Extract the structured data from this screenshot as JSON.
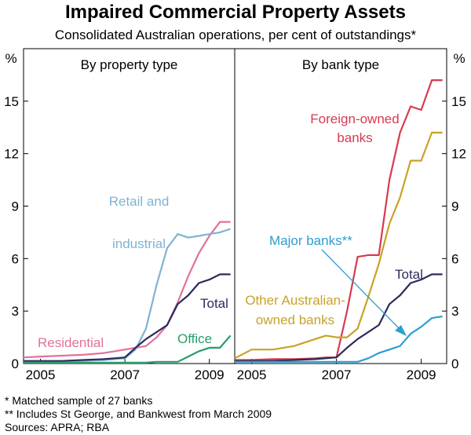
{
  "title": "Impaired Commercial Property Assets",
  "subtitle": "Consolidated Australian operations, per cent of outstandings*",
  "footnotes": [
    "*  Matched sample of 27 banks",
    "** Includes St George, and Bankwest from March 2009",
    "Sources: APRA; RBA"
  ],
  "chart_data": [
    {
      "type": "line",
      "panel_title": "By property type",
      "y_unit": "%",
      "ylim": [
        0,
        18
      ],
      "y_ticks": [
        0,
        3,
        6,
        9,
        12,
        15
      ],
      "xlim": [
        2004.6,
        2009.6
      ],
      "x_ticks": [
        2005,
        2007,
        2009
      ],
      "grid": false,
      "series": [
        {
          "name": "Residential",
          "color": "#e2719b",
          "x": [
            2004.6,
            2005.0,
            2005.5,
            2006.0,
            2006.5,
            2006.75,
            2007.0,
            2007.25,
            2007.5,
            2007.75,
            2008.0,
            2008.25,
            2008.5,
            2008.75,
            2009.0,
            2009.25,
            2009.5
          ],
          "y": [
            0.35,
            0.4,
            0.45,
            0.5,
            0.6,
            0.7,
            0.8,
            0.9,
            1.0,
            1.5,
            2.2,
            3.5,
            5.0,
            6.3,
            7.3,
            8.1,
            8.1
          ]
        },
        {
          "name": "Retail and industrial",
          "color": "#7fb2d4",
          "x": [
            2004.6,
            2005.0,
            2005.5,
            2006.0,
            2006.5,
            2006.75,
            2007.0,
            2007.25,
            2007.5,
            2007.75,
            2008.0,
            2008.25,
            2008.5,
            2008.75,
            2009.0,
            2009.25,
            2009.5
          ],
          "y": [
            0.1,
            0.1,
            0.1,
            0.15,
            0.2,
            0.25,
            0.3,
            0.8,
            2.0,
            4.5,
            6.6,
            7.4,
            7.2,
            7.3,
            7.4,
            7.5,
            7.7
          ]
        },
        {
          "name": "Total",
          "color": "#2b2b5e",
          "x": [
            2004.6,
            2005.0,
            2005.5,
            2006.0,
            2006.5,
            2006.75,
            2007.0,
            2007.25,
            2007.5,
            2007.75,
            2008.0,
            2008.25,
            2008.5,
            2008.75,
            2009.0,
            2009.25,
            2009.5
          ],
          "y": [
            0.15,
            0.15,
            0.15,
            0.2,
            0.25,
            0.3,
            0.35,
            0.9,
            1.4,
            1.8,
            2.2,
            3.4,
            3.9,
            4.6,
            4.8,
            5.1,
            5.1
          ]
        },
        {
          "name": "Office",
          "color": "#2a9d6b",
          "x": [
            2004.6,
            2005.0,
            2005.5,
            2006.0,
            2006.5,
            2006.75,
            2007.0,
            2007.25,
            2007.5,
            2007.75,
            2008.0,
            2008.25,
            2008.5,
            2008.75,
            2009.0,
            2009.25,
            2009.5
          ],
          "y": [
            0.05,
            0.05,
            0.05,
            0.05,
            0.05,
            0.05,
            0.05,
            0.05,
            0.05,
            0.1,
            0.1,
            0.1,
            0.4,
            0.7,
            0.9,
            0.9,
            1.6
          ]
        }
      ]
    },
    {
      "type": "line",
      "panel_title": "By bank type",
      "y_unit": "%",
      "ylim": [
        0,
        18
      ],
      "y_ticks": [
        0,
        3,
        6,
        9,
        12,
        15
      ],
      "xlim": [
        2004.6,
        2009.6
      ],
      "x_ticks": [
        2005,
        2007,
        2009
      ],
      "grid": false,
      "annotation": "Major banks**",
      "series": [
        {
          "name": "Foreign-owned banks",
          "color": "#d63a4f",
          "x": [
            2004.6,
            2005.0,
            2005.5,
            2006.0,
            2006.5,
            2006.75,
            2007.0,
            2007.25,
            2007.5,
            2007.75,
            2008.0,
            2008.25,
            2008.5,
            2008.75,
            2009.0,
            2009.25,
            2009.5
          ],
          "y": [
            0.2,
            0.2,
            0.25,
            0.25,
            0.3,
            0.35,
            0.35,
            3.0,
            6.1,
            6.2,
            6.2,
            10.5,
            13.2,
            14.7,
            14.5,
            16.2,
            16.2
          ]
        },
        {
          "name": "Other Australian-owned banks",
          "color": "#c9a227",
          "x": [
            2004.6,
            2005.0,
            2005.5,
            2006.0,
            2006.5,
            2006.75,
            2007.0,
            2007.25,
            2007.5,
            2007.75,
            2008.0,
            2008.25,
            2008.5,
            2008.75,
            2009.0,
            2009.25,
            2009.5
          ],
          "y": [
            0.3,
            0.8,
            0.8,
            1.0,
            1.4,
            1.6,
            1.5,
            1.5,
            2.0,
            3.8,
            5.7,
            8.0,
            9.5,
            11.6,
            11.6,
            13.2,
            13.2
          ]
        },
        {
          "name": "Total",
          "color": "#2b2b5e",
          "x": [
            2004.6,
            2005.0,
            2005.5,
            2006.0,
            2006.5,
            2006.75,
            2007.0,
            2007.25,
            2007.5,
            2007.75,
            2008.0,
            2008.25,
            2008.5,
            2008.75,
            2009.0,
            2009.25,
            2009.5
          ],
          "y": [
            0.15,
            0.15,
            0.15,
            0.2,
            0.25,
            0.3,
            0.35,
            0.9,
            1.4,
            1.8,
            2.2,
            3.4,
            3.9,
            4.6,
            4.8,
            5.1,
            5.1
          ]
        },
        {
          "name": "Major banks**",
          "color": "#2b9fd0",
          "x": [
            2004.6,
            2005.0,
            2005.5,
            2006.0,
            2006.5,
            2006.75,
            2007.0,
            2007.25,
            2007.5,
            2007.75,
            2008.0,
            2008.25,
            2008.5,
            2008.75,
            2009.0,
            2009.25,
            2009.5
          ],
          "y": [
            0.1,
            0.1,
            0.1,
            0.1,
            0.1,
            0.1,
            0.1,
            0.1,
            0.1,
            0.3,
            0.6,
            0.8,
            1.0,
            1.7,
            2.1,
            2.6,
            2.7
          ]
        }
      ]
    }
  ]
}
